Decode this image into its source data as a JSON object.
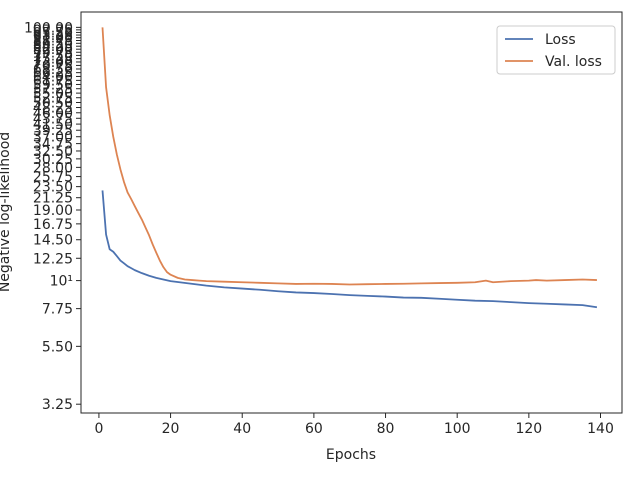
{
  "chart_data": {
    "type": "line",
    "title": "",
    "xlabel": "Epochs",
    "ylabel": "Negative log-likelihood",
    "xlim": [
      -5,
      146
    ],
    "ylim": [
      3.0,
      115
    ],
    "yscale": "log",
    "grid": false,
    "legend_position": "top-right",
    "x_ticks": [
      0,
      20,
      40,
      60,
      80,
      100,
      120,
      140
    ],
    "x_tick_labels": [
      "0",
      "20",
      "40",
      "60",
      "80",
      "100",
      "120",
      "140"
    ],
    "y_ticks": [
      3.25,
      5.5,
      7.75,
      10,
      12.25,
      14.5,
      16.75,
      19,
      21.25,
      23.5,
      25.75,
      28,
      30.25,
      32.5,
      34.75,
      37,
      39.25,
      41.5,
      43.75,
      46,
      48.25,
      50.5,
      52.75,
      55,
      57.25,
      59.5,
      61.75,
      64,
      66.25,
      68.5,
      70.75,
      73,
      75.25,
      77.5,
      79.75,
      82,
      84.25,
      86.5,
      88.75,
      91,
      93.25,
      95.5,
      97.75,
      100
    ],
    "y_tick_labels": [
      "3.25",
      "5.50",
      "7.75",
      "10¹",
      "12.25",
      "14.50",
      "16.75",
      "19.00",
      "21.25",
      "23.50",
      "25.75",
      "28.00",
      "30.25",
      "32.50",
      "34.75",
      "37.00",
      "39.25",
      "41.50",
      "43.75",
      "46.00",
      "48.25",
      "50.50",
      "52.75",
      "55.00",
      "57.25",
      "59.50",
      "61.75",
      "64.00",
      "66.25",
      "68.50",
      "70.75",
      "73.00",
      "75.25",
      "77.50",
      "79.75",
      "82.00",
      "84.25",
      "86.50",
      "88.75",
      "91.00",
      "93.25",
      "95.50",
      "97.75",
      "100.00"
    ],
    "series": [
      {
        "name": "Loss",
        "color": "#4c72b0",
        "x": [
          1,
          2,
          3,
          4,
          5,
          6,
          7,
          8,
          9,
          10,
          12,
          14,
          16,
          18,
          20,
          25,
          30,
          35,
          40,
          45,
          50,
          55,
          60,
          65,
          70,
          75,
          80,
          85,
          90,
          95,
          100,
          105,
          110,
          115,
          120,
          125,
          130,
          135,
          139
        ],
        "y": [
          22.7,
          15.2,
          13.3,
          13.0,
          12.5,
          12.0,
          11.7,
          11.4,
          11.2,
          11.0,
          10.7,
          10.45,
          10.25,
          10.1,
          9.95,
          9.75,
          9.55,
          9.4,
          9.3,
          9.2,
          9.08,
          8.98,
          8.93,
          8.85,
          8.76,
          8.7,
          8.65,
          8.57,
          8.55,
          8.48,
          8.4,
          8.33,
          8.3,
          8.22,
          8.15,
          8.1,
          8.05,
          8.0,
          7.85
        ]
      },
      {
        "name": "Val. loss",
        "color": "#dd8452",
        "x": [
          1,
          2,
          3,
          4,
          5,
          6,
          7,
          8,
          9,
          10,
          11,
          12,
          13,
          14,
          15,
          16,
          17,
          18,
          19,
          20,
          22,
          24,
          26,
          28,
          30,
          35,
          40,
          45,
          50,
          55,
          60,
          65,
          70,
          75,
          80,
          85,
          90,
          95,
          100,
          105,
          108,
          110,
          115,
          120,
          122,
          125,
          130,
          135,
          139
        ],
        "y": [
          100,
          58,
          45,
          37,
          31.5,
          27.5,
          24.5,
          22.3,
          21.0,
          19.7,
          18.5,
          17.4,
          16.2,
          15.1,
          13.9,
          12.9,
          12.0,
          11.3,
          10.8,
          10.55,
          10.25,
          10.1,
          10.05,
          10.0,
          9.95,
          9.9,
          9.85,
          9.8,
          9.75,
          9.7,
          9.72,
          9.7,
          9.65,
          9.68,
          9.7,
          9.72,
          9.75,
          9.78,
          9.8,
          9.85,
          10.0,
          9.85,
          9.95,
          10.0,
          10.05,
          10.0,
          10.05,
          10.1,
          10.05
        ]
      }
    ]
  }
}
